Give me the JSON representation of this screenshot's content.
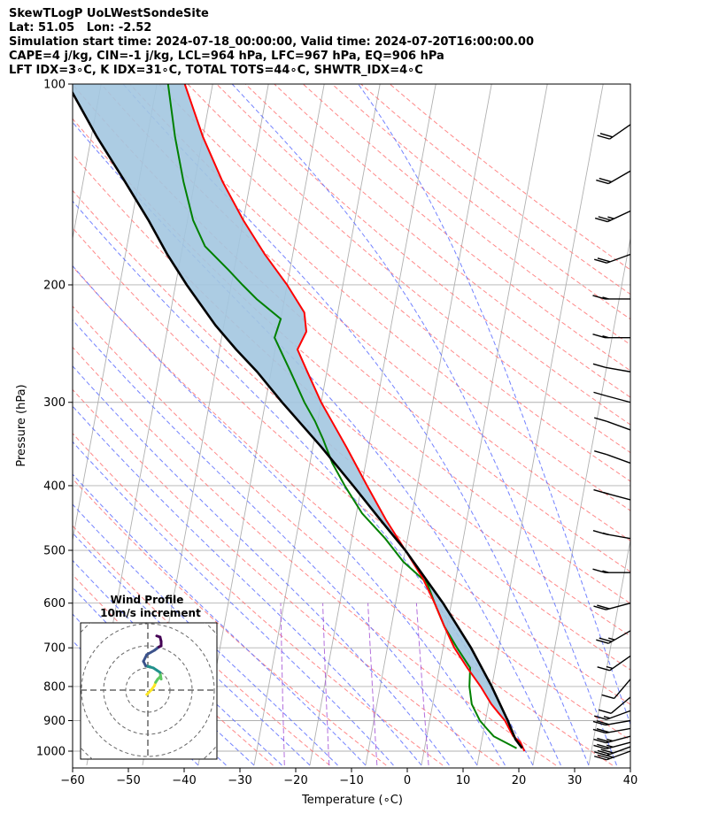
{
  "header": {
    "line1": "SkewTLogP UoLWestSondeSite",
    "line2": "Lat: 51.05   Lon: -2.52",
    "line3": "Simulation start time: 2024-07-18_00:00:00, Valid time: 2024-07-20T16:00:00.00",
    "line4": "CAPE=4 j/kg, CIN=-1 j/kg, LCL=964 hPa, LFC=967 hPa, EQ=906 hPa",
    "line5": "LFT IDX=3∘C, K IDX=31∘C, TOTAL TOTS=44∘C, SHWTR_IDX=4∘C"
  },
  "chart_data": [
    {
      "type": "line",
      "kind": "skew-t log-p",
      "xlabel": "Temperature (∘C)",
      "ylabel": "Pressure (hPa)",
      "xlim": [
        -60,
        40
      ],
      "ylim": [
        1050,
        100
      ],
      "y_scale": "log",
      "x_ticks": [
        "−60",
        "−50",
        "−40",
        "−30",
        "−20",
        "−10",
        "0",
        "10",
        "20",
        "30",
        "40"
      ],
      "y_ticks": [
        "100",
        "200",
        "300",
        "400",
        "500",
        "600",
        "700",
        "800",
        "900",
        "1000"
      ],
      "grid": true,
      "colors": {
        "temperature": "#ff0000",
        "dewpoint": "#008000",
        "parcel": "#000000",
        "cape_fill": "#a3c6e0",
        "dry_adiabat": "#ff6b6b",
        "moist_adiabat": "#5b6cff",
        "mixing_ratio": "#9a3fd0",
        "isotherm": "#b0b0b0"
      },
      "series": [
        {
          "key": "temperature",
          "p": [
            1000,
            970,
            950,
            925,
            900,
            875,
            850,
            800,
            750,
            700,
            650,
            600,
            550,
            500,
            450,
            400,
            350,
            300,
            270,
            250,
            235,
            220,
            200,
            180,
            160,
            140,
            120,
            100
          ],
          "t": [
            18,
            17,
            15.5,
            14.5,
            13.5,
            12,
            10.5,
            8,
            5,
            2,
            -0.5,
            -3,
            -6,
            -10,
            -14.5,
            -19,
            -24,
            -30,
            -33.5,
            -36,
            -35,
            -36,
            -40,
            -45,
            -50,
            -55,
            -60,
            -65
          ]
        },
        {
          "key": "dewpoint",
          "p": [
            990,
            950,
            925,
            900,
            850,
            800,
            750,
            700,
            650,
            600,
            560,
            520,
            480,
            440,
            400,
            370,
            340,
            320,
            300,
            270,
            240,
            225,
            210,
            200,
            190,
            175,
            160,
            140,
            120,
            100
          ],
          "td": [
            16.5,
            12,
            10.5,
            9,
            7,
            6,
            5.5,
            2.5,
            -0.5,
            -3,
            -5,
            -10,
            -14,
            -19,
            -23,
            -26,
            -28.5,
            -30.5,
            -33,
            -36.5,
            -40.5,
            -40,
            -45,
            -48,
            -51,
            -56,
            -59,
            -62,
            -65,
            -68
          ]
        },
        {
          "key": "parcel",
          "p": [
            990,
            960,
            900,
            800,
            700,
            600,
            500,
            450,
            400,
            350,
            300,
            270,
            250,
            230,
            200,
            180,
            160,
            140,
            120,
            100
          ],
          "t": [
            17.5,
            16,
            14,
            10,
            5,
            -1.5,
            -10,
            -15.5,
            -21.5,
            -28.5,
            -37,
            -42.5,
            -47,
            -51.5,
            -58,
            -62.5,
            -67,
            -72.5,
            -79,
            -86
          ]
        }
      ],
      "wind_barbs": {
        "p": [
          1000,
          985,
          970,
          950,
          925,
          900,
          870,
          830,
          780,
          720,
          660,
          600,
          540,
          480,
          420,
          370,
          330,
          300,
          270,
          240,
          210,
          180,
          155,
          135,
          115
        ],
        "speed_kt": [
          30,
          30,
          25,
          25,
          20,
          20,
          15,
          10,
          10,
          15,
          25,
          20,
          15,
          15,
          15,
          10,
          10,
          10,
          10,
          15,
          15,
          20,
          25,
          20,
          20
        ],
        "direction_deg": [
          250,
          250,
          255,
          255,
          260,
          260,
          250,
          230,
          220,
          235,
          240,
          255,
          270,
          280,
          285,
          290,
          290,
          285,
          280,
          270,
          270,
          250,
          245,
          240,
          235
        ]
      }
    },
    {
      "type": "line",
      "kind": "hodograph",
      "title": "Wind Profile",
      "subtitle": "10m/s increment",
      "rings_ms": [
        10,
        20,
        30,
        40
      ],
      "u_ms": [
        -0.5,
        0.5,
        1.5,
        3,
        3.5,
        4.5,
        5.5,
        6,
        5.5,
        4,
        2.5,
        1,
        -1,
        -2,
        -0.5,
        3,
        5,
        6,
        6,
        5.5,
        4
      ],
      "v_ms": [
        -2,
        -1,
        0,
        2,
        3.5,
        5,
        6,
        5,
        8,
        9,
        10,
        10.5,
        11,
        13,
        16,
        18,
        19.5,
        20,
        22,
        24,
        24.5
      ]
    }
  ]
}
